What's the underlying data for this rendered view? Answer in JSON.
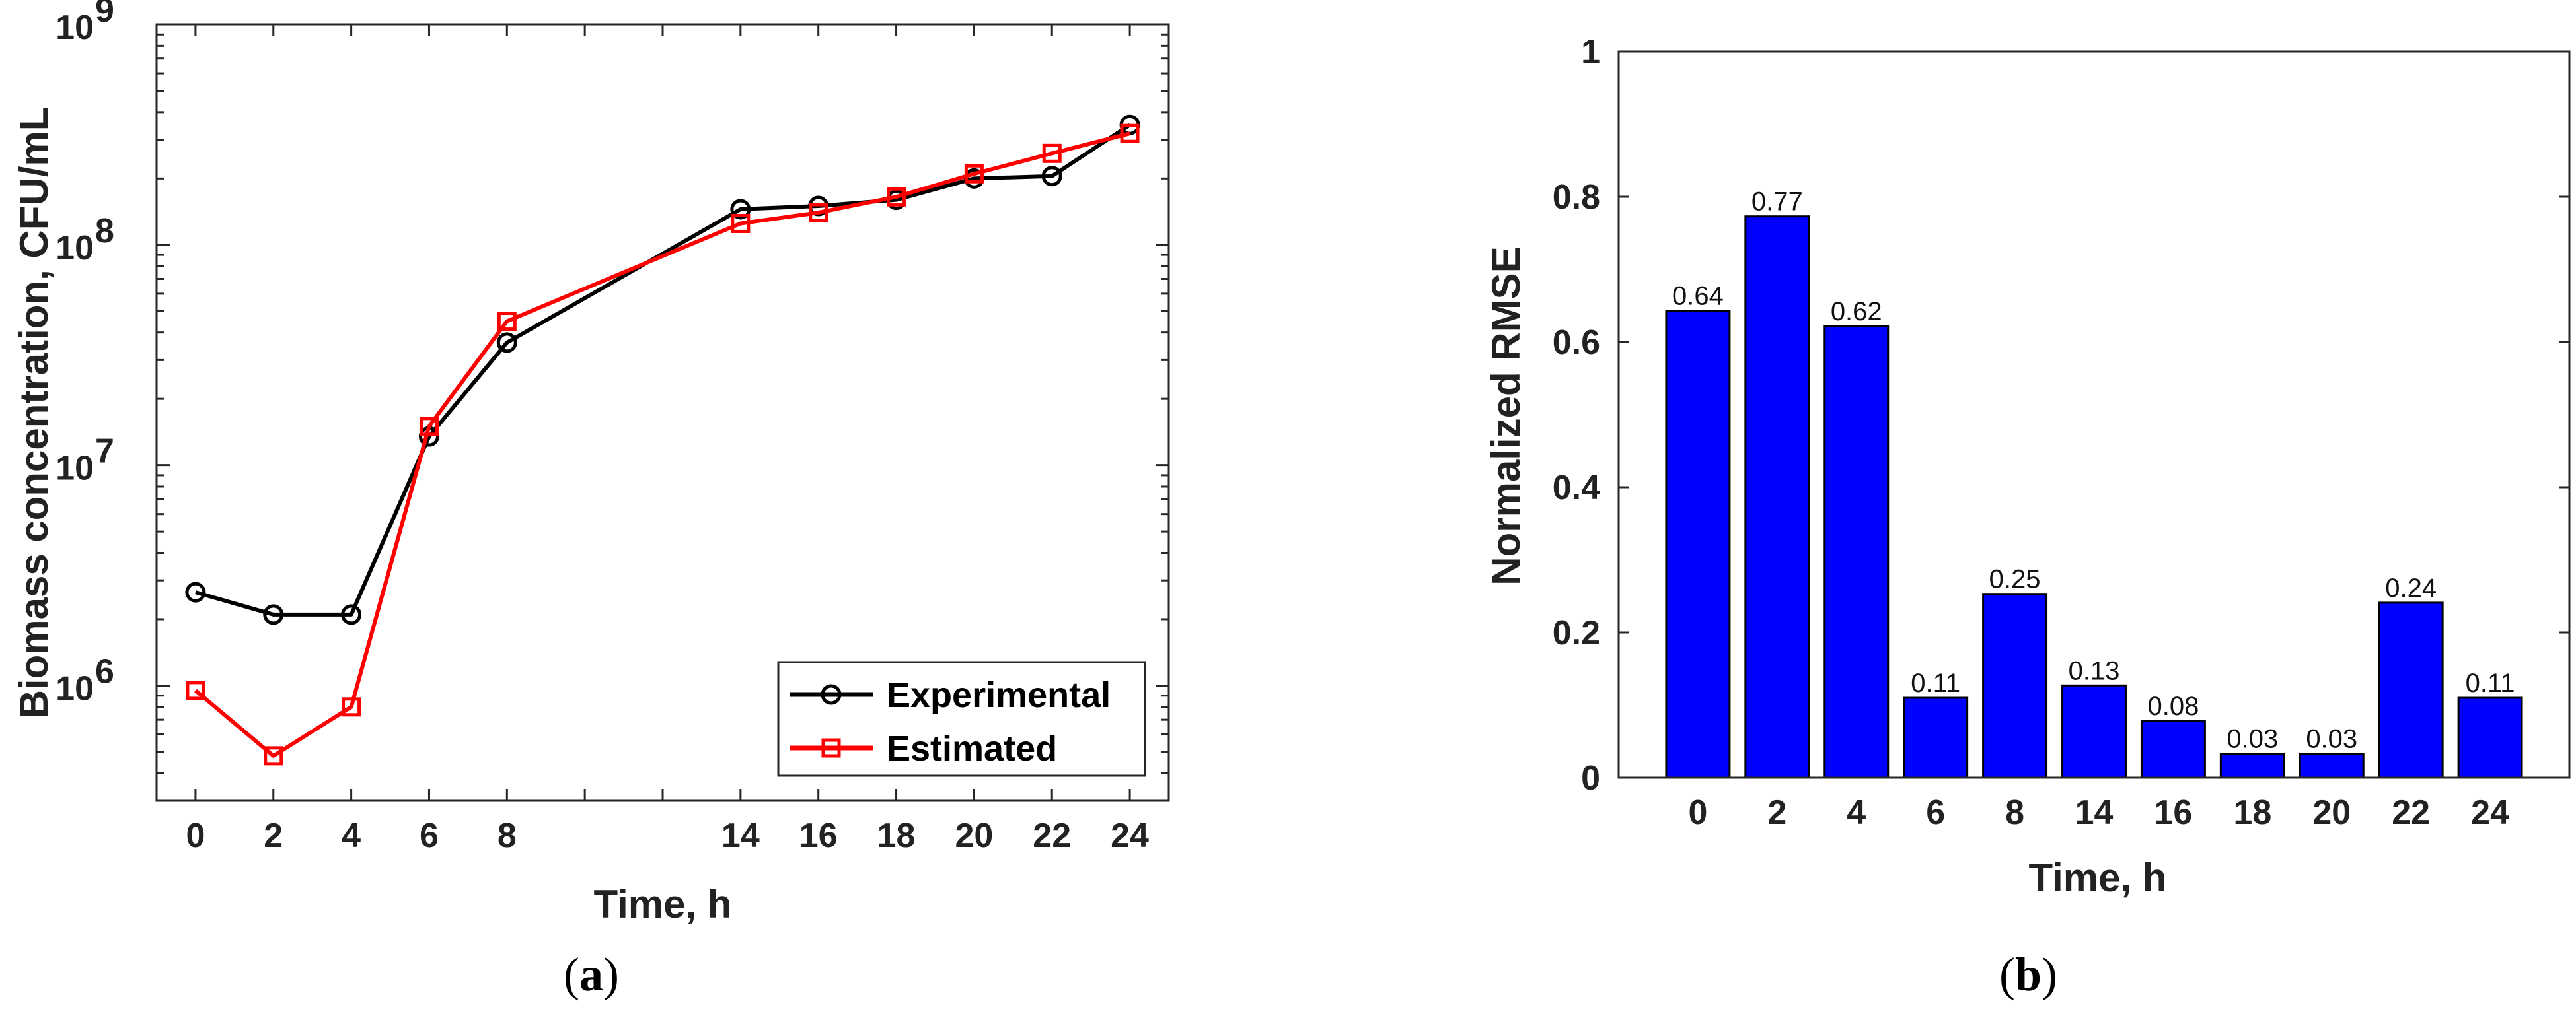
{
  "panels": {
    "a": {
      "caption_open": "(",
      "caption_letter": "a",
      "caption_close": ")"
    },
    "b": {
      "caption_open": "(",
      "caption_letter": "b",
      "caption_close": ")"
    }
  },
  "chart_data": [
    {
      "type": "line",
      "yscale": "log",
      "xlabel": "Time, h",
      "ylabel": "Biomass concentration, CFU/mL",
      "x": [
        0,
        2,
        4,
        6,
        8,
        14,
        16,
        18,
        20,
        22,
        24
      ],
      "xticks": [
        "0",
        "2",
        "4",
        "6",
        "8",
        "14",
        "16",
        "18",
        "20",
        "22",
        "24"
      ],
      "xlim": [
        -1,
        25
      ],
      "ylim": [
        300000,
        1000000000
      ],
      "yticks": [
        {
          "value": 1000000,
          "base": "10",
          "exp": "6"
        },
        {
          "value": 10000000,
          "base": "10",
          "exp": "7"
        },
        {
          "value": 100000000,
          "base": "10",
          "exp": "8"
        },
        {
          "value": 1000000000,
          "base": "10",
          "exp": "9"
        }
      ],
      "series": [
        {
          "name": "Experimental",
          "color": "#000000",
          "marker": "circle",
          "values": [
            2650000,
            2100000,
            2100000,
            13500000,
            36000000,
            145000000,
            150000000,
            160000000,
            200000000,
            205000000,
            350000000
          ]
        },
        {
          "name": "Estimated",
          "color": "#ff0000",
          "marker": "square",
          "values": [
            950000,
            480000,
            800000,
            15000000,
            45000000,
            125000000,
            140000000,
            165000000,
            210000000,
            260000000,
            320000000
          ]
        }
      ],
      "legend_location": "bottom-right"
    },
    {
      "type": "bar",
      "xlabel": "Time, h",
      "ylabel": "Normalized RMSE",
      "categories": [
        "0",
        "2",
        "4",
        "6",
        "8",
        "14",
        "16",
        "18",
        "20",
        "22",
        "24"
      ],
      "values": [
        0.643,
        0.773,
        0.622,
        0.11,
        0.253,
        0.127,
        0.078,
        0.033,
        0.033,
        0.241,
        0.11
      ],
      "data_labels": [
        "0.64",
        "0.77",
        "0.62",
        "0.11",
        "0.25",
        "0.13",
        "0.08",
        "0.03",
        "0.03",
        "0.24",
        "0.11"
      ],
      "yticks": [
        "0",
        "0.2",
        "0.4",
        "0.6",
        "0.8",
        "1"
      ],
      "ylim": [
        0,
        1
      ],
      "bar_color": "#0000ff"
    }
  ]
}
